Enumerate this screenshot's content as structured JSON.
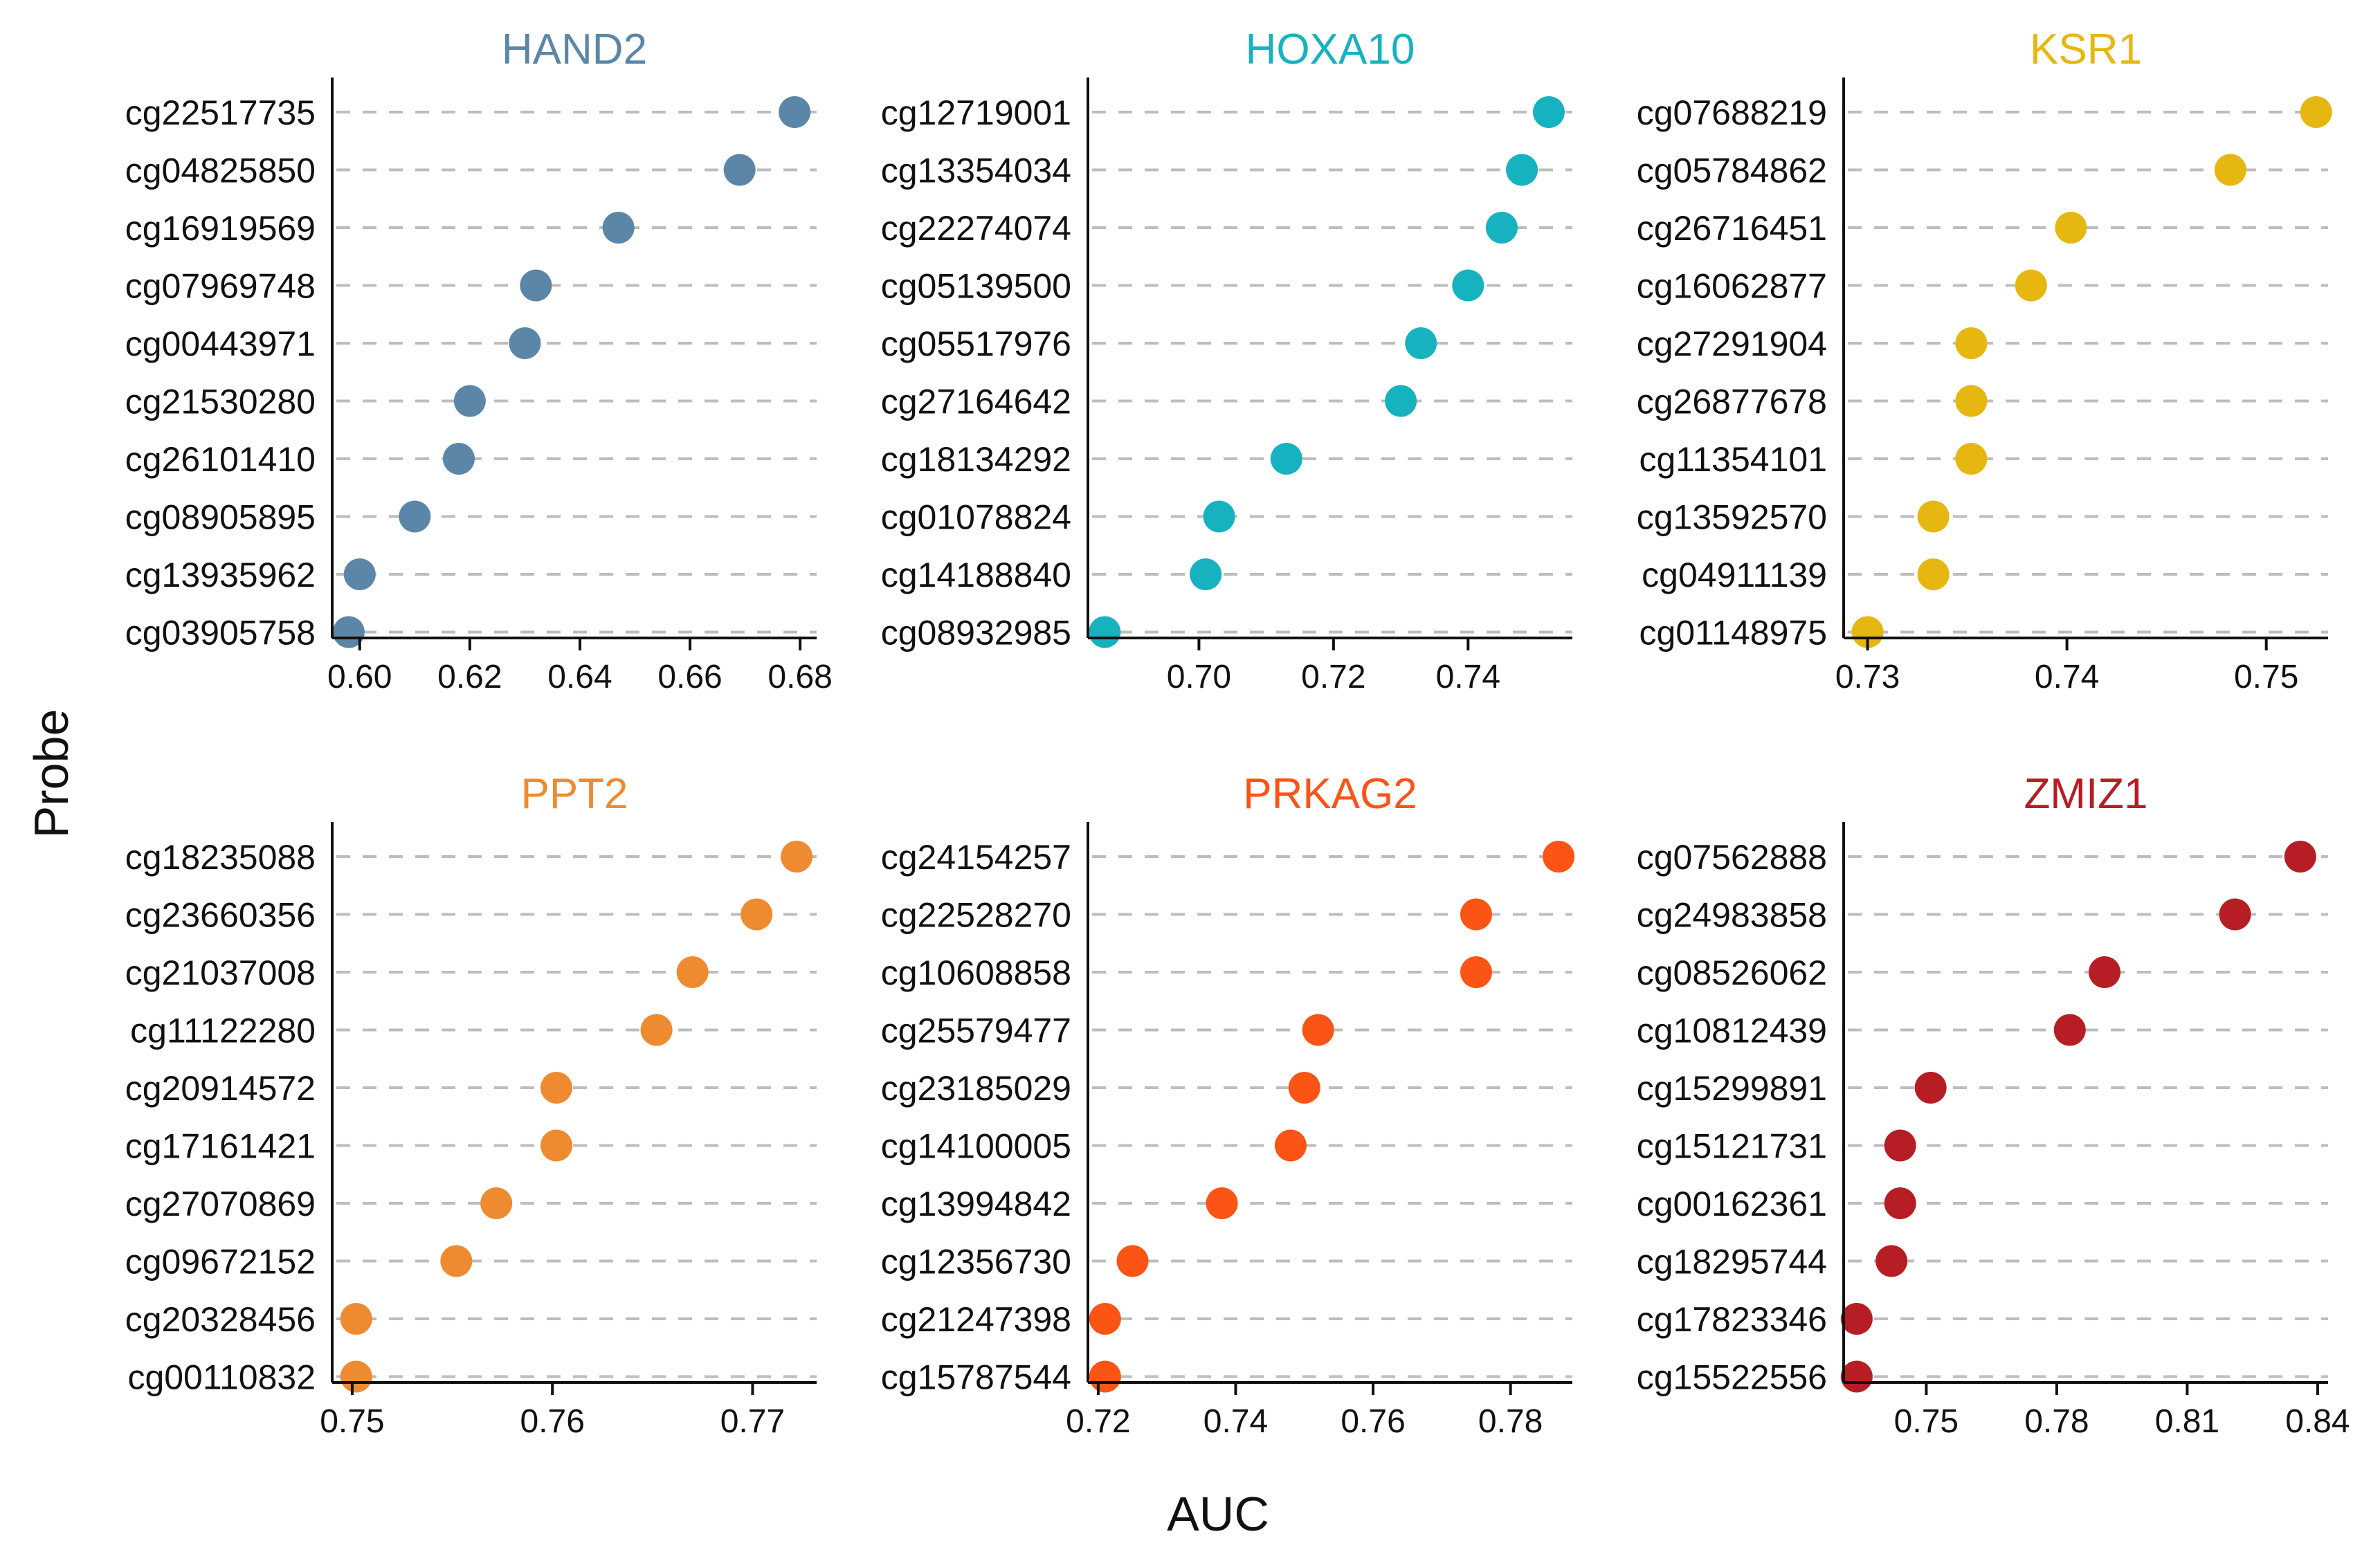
{
  "chart_data": {
    "type": "scatter",
    "ylabel": "Probe",
    "xlabel": "AUC",
    "panels": [
      {
        "title": "HAND2",
        "color": "#5b86a7",
        "xlim": [
          0.595,
          0.683
        ],
        "ticks": [
          0.6,
          0.62,
          0.64,
          0.66,
          0.68
        ],
        "tick_labels": [
          "0.60",
          "0.62",
          "0.64",
          "0.66",
          "0.68"
        ],
        "probes": [
          "cg22517735",
          "cg04825850",
          "cg16919569",
          "cg07969748",
          "cg00443971",
          "cg21530280",
          "cg26101410",
          "cg08905895",
          "cg13935962",
          "cg03905758"
        ],
        "values": [
          0.679,
          0.669,
          0.647,
          0.632,
          0.63,
          0.62,
          0.618,
          0.61,
          0.6,
          0.598
        ]
      },
      {
        "title": "HOXA10",
        "color": "#17b2c0",
        "xlim": [
          0.6835,
          0.7555
        ],
        "ticks": [
          0.7,
          0.72,
          0.74
        ],
        "tick_labels": [
          "0.70",
          "0.72",
          "0.74"
        ],
        "probes": [
          "cg12719001",
          "cg13354034",
          "cg22274074",
          "cg05139500",
          "cg05517976",
          "cg27164642",
          "cg18134292",
          "cg01078824",
          "cg14188840",
          "cg08932985"
        ],
        "values": [
          0.752,
          0.748,
          0.745,
          0.74,
          0.733,
          0.73,
          0.713,
          0.703,
          0.701,
          0.686
        ]
      },
      {
        "title": "KSR1",
        "color": "#e6b711",
        "xlim": [
          0.7288,
          0.7531
        ],
        "ticks": [
          0.73,
          0.74,
          0.75
        ],
        "tick_labels": [
          "0.73",
          "0.74",
          "0.75"
        ],
        "probes": [
          "cg07688219",
          "cg05784862",
          "cg26716451",
          "cg16062877",
          "cg27291904",
          "cg26877678",
          "cg11354101",
          "cg13592570",
          "cg04911139",
          "cg01148975"
        ],
        "values": [
          0.7525,
          0.7482,
          0.7402,
          0.7382,
          0.7352,
          0.7352,
          0.7352,
          0.7333,
          0.7333,
          0.73
        ]
      },
      {
        "title": "PPT2",
        "color": "#ee8b30",
        "xlim": [
          0.749,
          0.7732
        ],
        "ticks": [
          0.75,
          0.76,
          0.77
        ],
        "tick_labels": [
          "0.75",
          "0.76",
          "0.77"
        ],
        "probes": [
          "cg18235088",
          "cg23660356",
          "cg21037008",
          "cg11122280",
          "cg20914572",
          "cg17161421",
          "cg27070869",
          "cg09672152",
          "cg20328456",
          "cg00110832"
        ],
        "values": [
          0.7722,
          0.7702,
          0.767,
          0.7652,
          0.7602,
          0.7602,
          0.7572,
          0.7552,
          0.7502,
          0.7502
        ]
      },
      {
        "title": "PRKAG2",
        "color": "#fb5415",
        "xlim": [
          0.7185,
          0.789
        ],
        "ticks": [
          0.72,
          0.74,
          0.76,
          0.78
        ],
        "tick_labels": [
          "0.72",
          "0.74",
          "0.76",
          "0.78"
        ],
        "probes": [
          "cg24154257",
          "cg22528270",
          "cg10608858",
          "cg25579477",
          "cg23185029",
          "cg14100005",
          "cg13994842",
          "cg12356730",
          "cg21247398",
          "cg15787544"
        ],
        "values": [
          0.787,
          0.775,
          0.775,
          0.752,
          0.75,
          0.748,
          0.738,
          0.725,
          0.721,
          0.721
        ]
      },
      {
        "title": "ZMIZ1",
        "color": "#b71d24",
        "xlim": [
          0.731,
          0.8424
        ],
        "ticks": [
          0.75,
          0.78,
          0.81,
          0.84
        ],
        "tick_labels": [
          "0.75",
          "0.78",
          "0.81",
          "0.84"
        ],
        "probes": [
          "cg07562888",
          "cg24983858",
          "cg08526062",
          "cg10812439",
          "cg15299891",
          "cg15121731",
          "cg00162361",
          "cg18295744",
          "cg17823346",
          "cg15522556"
        ],
        "values": [
          0.836,
          0.821,
          0.791,
          0.783,
          0.751,
          0.744,
          0.744,
          0.742,
          0.734,
          0.734
        ]
      }
    ]
  }
}
